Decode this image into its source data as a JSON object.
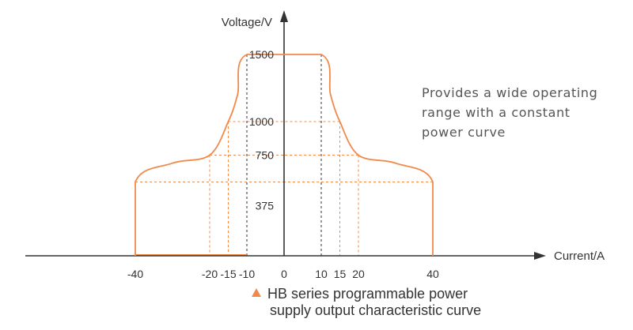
{
  "chart_data": {
    "type": "line",
    "title": "",
    "xlabel": "Current/A",
    "ylabel": "Voltage/V",
    "xlim": [
      -45,
      70
    ],
    "ylim": [
      0,
      1900
    ],
    "x_ticks": [
      {
        "value": -40,
        "label": "-40"
      },
      {
        "value": -20,
        "label": "-20"
      },
      {
        "value": -15,
        "label": "-15"
      },
      {
        "value": -10,
        "label": "-10"
      },
      {
        "value": 0,
        "label": "0"
      },
      {
        "value": 10,
        "label": "10"
      },
      {
        "value": 15,
        "label": "15"
      },
      {
        "value": 20,
        "label": "20"
      },
      {
        "value": 40,
        "label": "40"
      }
    ],
    "y_ticks": [
      {
        "value": 375,
        "label": "375"
      },
      {
        "value": 750,
        "label": "750"
      },
      {
        "value": 1000,
        "label": "1000"
      },
      {
        "value": 1500,
        "label": "1500"
      }
    ],
    "series": [
      {
        "color": "#f08a4b",
        "points": [
          {
            "x": -40,
            "y": 0
          },
          {
            "x": -40,
            "y": 550
          },
          {
            "x": -30,
            "y": 690
          },
          {
            "x": -20,
            "y": 750
          },
          {
            "x": -15,
            "y": 1000
          },
          {
            "x": -12.5,
            "y": 1200
          },
          {
            "x": -10,
            "y": 1500
          },
          {
            "x": 10,
            "y": 1500
          },
          {
            "x": 12.5,
            "y": 1200
          },
          {
            "x": 15,
            "y": 1000
          },
          {
            "x": 20,
            "y": 750
          },
          {
            "x": 30,
            "y": 690
          },
          {
            "x": 40,
            "y": 550
          },
          {
            "x": 40,
            "y": 0
          }
        ]
      }
    ],
    "reference_lines": [
      {
        "x": -10,
        "y": 1500,
        "color": "#333333"
      },
      {
        "x": 10,
        "y": 1500,
        "color": "#333333"
      },
      {
        "x": -15,
        "y": 1000,
        "color": "#f08a4b"
      },
      {
        "x": 15,
        "y": 1000,
        "color": "#f08a4b"
      },
      {
        "x": -20,
        "y": 750,
        "color": "#f08a4b"
      },
      {
        "x": 20,
        "y": 750,
        "color": "#f08a4b"
      },
      {
        "x": -40,
        "y": 550,
        "color": "#f08a4b"
      },
      {
        "x": 40,
        "y": 550,
        "color": "#f08a4b"
      }
    ],
    "grid": false,
    "legend": "none",
    "colors": {
      "curve": "#f08a4b",
      "axis": "#333333",
      "text": "#333333"
    }
  },
  "annotation": {
    "text": "Provides a wide operating\nrange with a constant\npower curve"
  },
  "caption": {
    "line1": "HB series programmable power",
    "line2": "supply output characteristic curve",
    "marker_icon": "triangle-marker-icon"
  }
}
